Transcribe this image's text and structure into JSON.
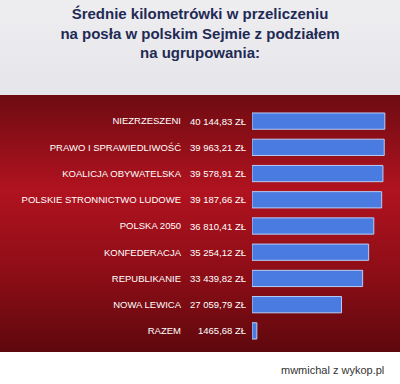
{
  "chart_data": {
    "type": "bar",
    "orientation": "horizontal",
    "title": "Średnie kilometrówki w przeliczeniu na posła w polskim Sejmie z podziałem na ugrupowania:",
    "categories": [
      "NIEZRZESZENI",
      "PRAWO I SPRAWIEDLIWOŚĆ",
      "KOALICJA OBYWATELSKA",
      "POLSKIE STRONNICTWO LUDOWE",
      "POLSKA 2050",
      "KONFEDERACJA",
      "REPUBLIKANIE",
      "NOWA LEWICA",
      "RAZEM"
    ],
    "values": [
      40144.83,
      39963.21,
      39578.91,
      39187.66,
      36810.41,
      35254.12,
      33439.82,
      27059.79,
      1465.68
    ],
    "value_labels": [
      "40 144,83 ZŁ",
      "39 963,21 ZŁ",
      "39 578,91 ZŁ",
      "39 187,66 ZŁ",
      "36 810,41 ZŁ",
      "35 254,12 ZŁ",
      "33 439,82 ZŁ",
      "27 059,79 ZŁ",
      "1465,68 ZŁ"
    ],
    "data_labels": true,
    "color": "#4a7be0",
    "xlim": [
      0,
      40500
    ],
    "xticks": [],
    "grid": false,
    "tick_labels": "y",
    "annotations": [
      "mwmichal z wykop.pl"
    ]
  }
}
